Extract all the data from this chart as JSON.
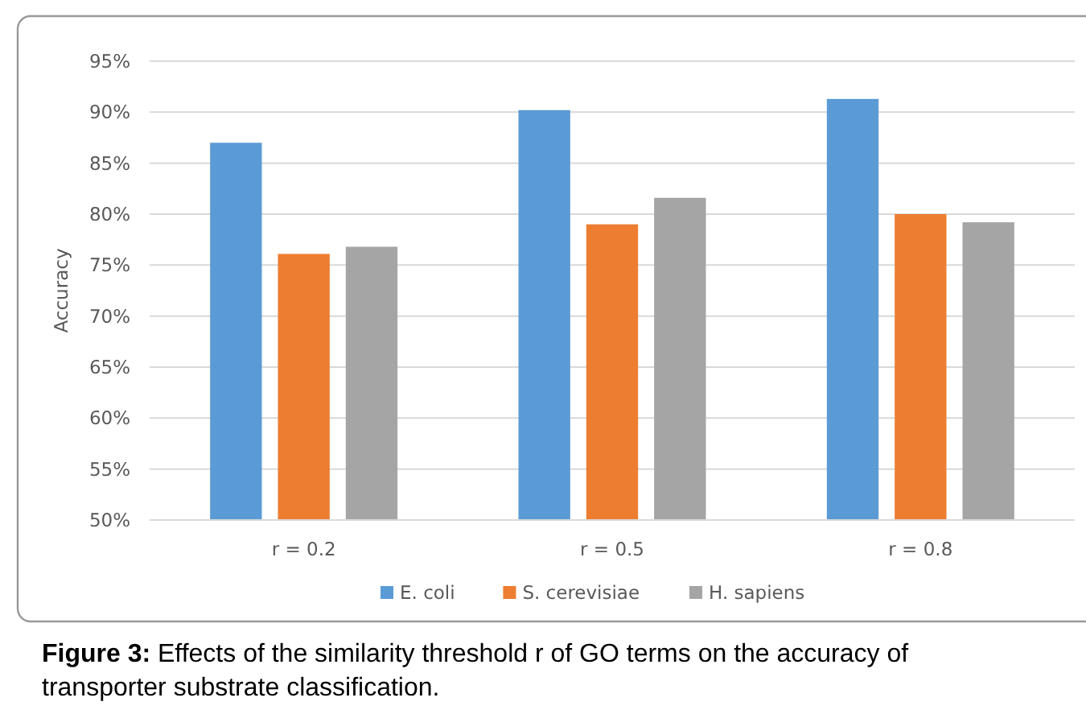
{
  "chart_data": {
    "type": "bar",
    "ylabel": "Accuracy",
    "categories": [
      "r = 0.2",
      "r = 0.5",
      "r = 0.8"
    ],
    "series": [
      {
        "name": "E. coli",
        "color": "#5b9bd5",
        "values": [
          87.0,
          90.2,
          91.3
        ]
      },
      {
        "name": "S. cerevisiae",
        "color": "#ed7d31",
        "values": [
          76.1,
          79.0,
          80.0
        ]
      },
      {
        "name": "H. sapiens",
        "color": "#a5a5a5",
        "values": [
          76.8,
          81.6,
          79.2
        ]
      }
    ],
    "ylim": [
      50,
      95
    ],
    "yticks": [
      {
        "value": 50,
        "label": "50%"
      },
      {
        "value": 55,
        "label": "55%"
      },
      {
        "value": 60,
        "label": "60%"
      },
      {
        "value": 65,
        "label": "65%"
      },
      {
        "value": 70,
        "label": "70%"
      },
      {
        "value": 75,
        "label": "75%"
      },
      {
        "value": 80,
        "label": "80%"
      },
      {
        "value": 85,
        "label": "85%"
      },
      {
        "value": 90,
        "label": "90%"
      },
      {
        "value": 95,
        "label": "95%"
      }
    ],
    "grid": "y",
    "legend": "bottom",
    "annotations": [
      "Figure 3: Effects of the similarity threshold r of GO terms on the accuracy of transporter substrate classification."
    ]
  }
}
